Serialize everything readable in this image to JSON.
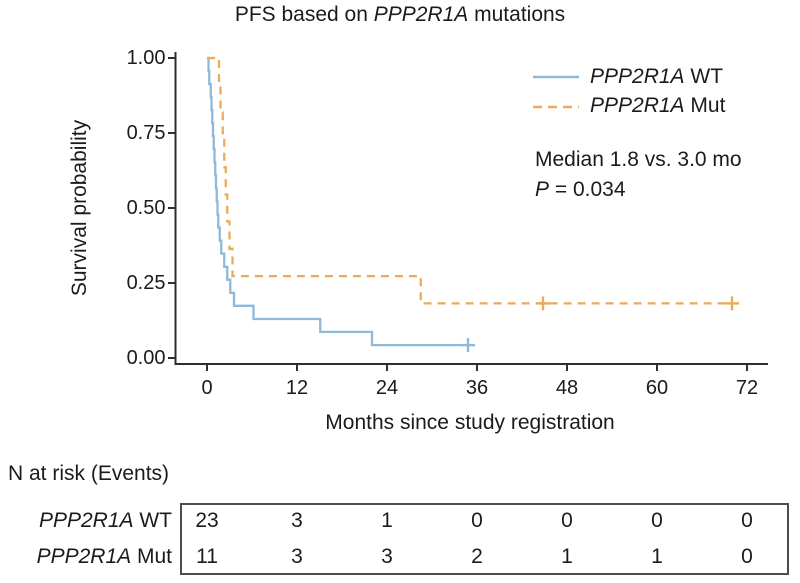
{
  "header": {
    "title_prefix": "PFS based on ",
    "title_gene": "PPP2R1A",
    "title_suffix": " mutations"
  },
  "axes": {
    "x": {
      "label": "Months since study registration",
      "ticks": [
        0,
        12,
        24,
        36,
        48,
        60,
        72
      ]
    },
    "y": {
      "label": "Survival probability",
      "ticks": [
        "1.00",
        "0.75",
        "0.50",
        "0.25",
        "0.00"
      ],
      "tick_values": [
        1.0,
        0.75,
        0.5,
        0.25,
        0.0
      ]
    }
  },
  "legend": {
    "items": [
      {
        "gene": "PPP2R1A",
        "suffix": " WT",
        "color": "#8FB9D8",
        "line_style": "solid"
      },
      {
        "gene": "PPP2R1A",
        "suffix": " Mut",
        "color": "#EAAC58",
        "line_style": "dashed"
      }
    ]
  },
  "annotation": {
    "median_line": "Median 1.8 vs. 3.0 mo",
    "p_italic": "P",
    "p_rest": " = 0.034"
  },
  "chart_data": {
    "type": "line",
    "subtype": "kaplan_meier_step",
    "title": "PFS based on PPP2R1A mutations",
    "xlabel": "Months since study registration",
    "ylabel": "Survival probability",
    "xlim": [
      0,
      74.5
    ],
    "ylim": [
      0,
      1
    ],
    "xticks": [
      0,
      12,
      24,
      36,
      48,
      60,
      72
    ],
    "yticks": [
      1.0,
      0.75,
      0.5,
      0.25,
      0.0
    ],
    "grid": false,
    "legend_position": "top-right-inside",
    "series": [
      {
        "name": "PPP2R1A WT",
        "color": "#8FB9D8",
        "line_style": "solid",
        "n_start": 23,
        "median_months": 1.8,
        "steps": [
          [
            0,
            1.0
          ],
          [
            0.2,
            0.957
          ],
          [
            0.3,
            0.913
          ],
          [
            0.5,
            0.87
          ],
          [
            0.6,
            0.826
          ],
          [
            0.7,
            0.783
          ],
          [
            0.8,
            0.739
          ],
          [
            0.9,
            0.696
          ],
          [
            1.0,
            0.652
          ],
          [
            1.1,
            0.609
          ],
          [
            1.2,
            0.565
          ],
          [
            1.3,
            0.522
          ],
          [
            1.4,
            0.478
          ],
          [
            1.5,
            0.435
          ],
          [
            1.7,
            0.391
          ],
          [
            1.9,
            0.348
          ],
          [
            2.3,
            0.304
          ],
          [
            2.7,
            0.261
          ],
          [
            3.1,
            0.217
          ],
          [
            3.6,
            0.174
          ],
          [
            6.2,
            0.13
          ],
          [
            15.1,
            0.087
          ],
          [
            22.0,
            0.043
          ]
        ],
        "end_month": 34.8,
        "censor_marks": [
          [
            34.8,
            0.043
          ]
        ]
      },
      {
        "name": "PPP2R1A Mut",
        "color": "#EAAC58",
        "line_style": "dashed",
        "n_start": 11,
        "median_months": 3.0,
        "steps": [
          [
            0,
            1.0
          ],
          [
            1.6,
            0.909
          ],
          [
            1.8,
            0.818
          ],
          [
            2.1,
            0.727
          ],
          [
            2.3,
            0.636
          ],
          [
            2.5,
            0.545
          ],
          [
            2.7,
            0.455
          ],
          [
            3.0,
            0.364
          ],
          [
            3.4,
            0.273
          ],
          [
            28.5,
            0.182
          ]
        ],
        "end_month": 70.0,
        "censor_marks": [
          [
            44.8,
            0.182
          ],
          [
            70.0,
            0.182
          ]
        ]
      }
    ],
    "p_value": "0.034"
  },
  "risk_table": {
    "heading": "N at risk (Events)",
    "columns": [
      0,
      12,
      24,
      36,
      48,
      60,
      72
    ],
    "rows": [
      {
        "gene": "PPP2R1A",
        "suffix": " WT",
        "values": [
          "23",
          "3",
          "1",
          "0",
          "0",
          "0",
          "0"
        ]
      },
      {
        "gene": "PPP2R1A",
        "suffix": " Mut",
        "values": [
          "11",
          "3",
          "3",
          "2",
          "1",
          "1",
          "0"
        ]
      }
    ]
  },
  "colors": {
    "wt": "#8FB9D8",
    "mut": "#EAAC58",
    "text": "#1b1b1b",
    "axis": "#2e2e2e",
    "table_border": "#4d4d4d"
  }
}
